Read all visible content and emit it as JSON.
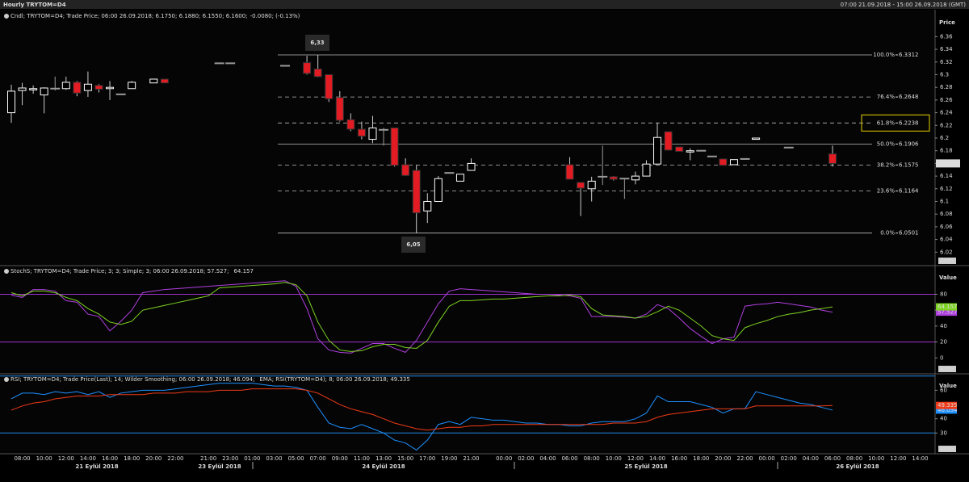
{
  "header": {
    "title": "Hourly TRYTOM=D4",
    "range": "07:00 21.09.2018 - 15:00 26.09.2018 (GMT)"
  },
  "x_axis": {
    "categories": [
      null,
      "08:00",
      null,
      "10:00",
      null,
      "12:00",
      null,
      "14:00",
      null,
      "16:00",
      null,
      "18:00",
      null,
      "20:00",
      null,
      "22:00",
      null,
      null,
      "21:00",
      null,
      "23:00",
      null,
      "01:00",
      null,
      "03:00",
      null,
      "05:00",
      null,
      "07:00",
      null,
      "09:00",
      null,
      "11:00",
      null,
      "13:00",
      null,
      "15:00",
      null,
      "17:00",
      null,
      "19:00",
      null,
      "21:00",
      null,
      null,
      "00:00",
      null,
      "02:00",
      null,
      "04:00",
      null,
      "06:00",
      null,
      "08:00",
      null,
      "10:00",
      null,
      "12:00",
      null,
      "14:00",
      null,
      "16:00",
      null,
      "18:00",
      null,
      "20:00",
      null,
      "22:00",
      null,
      "00:00",
      null,
      "02:00",
      null,
      "04:00",
      null,
      "06:00",
      null,
      "08:00",
      null,
      "10:00",
      null,
      "12:00",
      null,
      "14:00"
    ],
    "dates": [
      "21 Eylül 2018",
      "23 Eylül 2018",
      "24 Eylül 2018",
      "25 Eylül 2018",
      "26 Eylül 2018"
    ]
  },
  "chart_data": [
    {
      "type": "candlestick",
      "legend": "Cndl; TRYTOM=D4; Trade Price; 06:00 26.09.2018; 6.1750; 6.1880; 6.1550; 6.1600;",
      "legend_change": "-0.0080; (-0.13%)",
      "axis_title": "Price",
      "button": "Auto",
      "ylim": [
        6.0,
        6.4
      ],
      "yticks": [
        6.02,
        6.04,
        6.06,
        6.08,
        6.1,
        6.12,
        6.14,
        6.16,
        6.18,
        6.2,
        6.22,
        6.24,
        6.26,
        6.28,
        6.3,
        6.32,
        6.34,
        6.36
      ],
      "up_color": "#ffffff",
      "down_color": "#e31b23",
      "flat_color": "#9a9a9a",
      "last_price": {
        "value": 6.16,
        "label": "6.1600"
      },
      "annotations": [
        "6,33",
        "6,05"
      ],
      "fib_levels": [
        {
          "label": "100.0%",
          "value": 6.3312,
          "dashed": false
        },
        {
          "label": "76.4%",
          "value": 6.2648,
          "dashed": true
        },
        {
          "label": "61.8%",
          "value": 6.2238,
          "dashed": true,
          "highlight": "#e8d200"
        },
        {
          "label": "50.0%",
          "value": 6.1906,
          "dashed": false
        },
        {
          "label": "38.2%",
          "value": 6.1575,
          "dashed": true
        },
        {
          "label": "23.6%",
          "value": 6.1164,
          "dashed": true
        },
        {
          "label": "0.0%",
          "value": 6.0501,
          "dashed": false
        }
      ],
      "open": [
        6.24,
        6.275,
        6.276,
        6.268,
        6.278,
        6.278,
        6.288,
        6.275,
        6.283,
        6.278,
        6.269,
        6.278,
        null,
        6.287,
        6.293,
        null,
        null,
        null,
        null,
        6.318,
        6.318,
        null,
        null,
        null,
        null,
        6.314,
        null,
        6.319,
        6.309,
        6.3,
        6.264,
        6.229,
        6.214,
        6.198,
        6.213,
        6.216,
        6.158,
        6.149,
        6.085,
        6.1,
        6.145,
        6.132,
        6.149,
        null,
        null,
        null,
        null,
        null,
        null,
        null,
        null,
        6.158,
        6.13,
        6.12,
        6.139,
        6.139,
        6.136,
        6.134,
        6.14,
        6.159,
        6.21,
        6.186,
        6.178,
        6.18,
        6.171,
        6.167,
        6.158,
        6.167,
        6.198,
        null,
        null,
        6.185,
        null,
        null,
        null,
        6.175,
        null,
        null,
        null,
        null,
        null,
        null,
        null,
        null
      ],
      "high": [
        6.284,
        6.287,
        6.283,
        6.28,
        6.297,
        6.297,
        6.29,
        6.305,
        6.285,
        6.29,
        6.269,
        6.29,
        null,
        6.293,
        6.293,
        null,
        null,
        null,
        null,
        6.318,
        6.318,
        null,
        null,
        null,
        null,
        6.314,
        null,
        6.33,
        6.3312,
        6.3,
        6.274,
        6.239,
        6.226,
        6.235,
        6.216,
        6.216,
        6.168,
        6.157,
        6.113,
        6.14,
        6.145,
        6.143,
        6.168,
        null,
        null,
        null,
        null,
        null,
        null,
        null,
        null,
        6.17,
        6.13,
        6.139,
        6.188,
        6.14,
        6.136,
        6.147,
        6.165,
        6.224,
        6.21,
        6.186,
        6.184,
        6.18,
        6.171,
        6.167,
        6.166,
        6.167,
        6.2,
        null,
        null,
        6.185,
        null,
        null,
        null,
        6.188,
        null,
        null,
        null,
        null,
        null,
        null,
        null,
        null
      ],
      "low": [
        6.224,
        6.252,
        6.27,
        6.239,
        6.275,
        6.276,
        6.266,
        6.265,
        6.272,
        6.26,
        6.269,
        6.278,
        null,
        6.287,
        6.287,
        null,
        null,
        null,
        null,
        6.318,
        6.318,
        null,
        null,
        null,
        null,
        6.314,
        null,
        6.3,
        6.296,
        6.257,
        6.226,
        6.211,
        6.198,
        6.192,
        6.188,
        6.155,
        6.14,
        6.0501,
        6.066,
        6.1,
        6.145,
        6.132,
        6.149,
        null,
        null,
        null,
        null,
        null,
        null,
        null,
        null,
        6.135,
        6.077,
        6.1,
        6.126,
        6.133,
        6.104,
        6.127,
        6.14,
        6.159,
        6.181,
        6.179,
        6.165,
        6.18,
        6.171,
        6.157,
        6.158,
        6.167,
        6.198,
        null,
        null,
        6.185,
        null,
        null,
        null,
        6.155,
        null,
        null,
        null,
        null,
        null,
        null,
        null,
        null
      ],
      "close": [
        6.274,
        6.279,
        6.278,
        6.279,
        6.278,
        6.288,
        6.271,
        6.285,
        6.277,
        6.28,
        6.269,
        6.288,
        null,
        6.293,
        6.287,
        null,
        null,
        null,
        null,
        6.318,
        6.318,
        null,
        null,
        null,
        null,
        6.314,
        null,
        6.302,
        6.297,
        6.262,
        6.228,
        6.214,
        6.203,
        6.216,
        6.213,
        6.157,
        6.141,
        6.082,
        6.1,
        6.136,
        6.145,
        6.143,
        6.16,
        null,
        null,
        null,
        null,
        null,
        null,
        null,
        null,
        6.135,
        6.121,
        6.132,
        6.139,
        6.135,
        6.136,
        6.14,
        6.159,
        6.201,
        6.181,
        6.179,
        6.18,
        6.18,
        6.171,
        6.157,
        6.166,
        6.167,
        6.2,
        null,
        null,
        6.185,
        null,
        null,
        null,
        6.16,
        null,
        null,
        null,
        null,
        null,
        null,
        null,
        null
      ]
    },
    {
      "type": "line",
      "axis_title": "Value",
      "button": "Auto",
      "ylim": [
        -19,
        115
      ],
      "yticks": [
        0,
        20,
        40,
        60,
        80
      ],
      "levels": [
        20,
        80
      ],
      "level_color": "#a030d0",
      "series": [
        {
          "name": "StochS; TRYTOM=D4; Trade Price;  3; 3; Simple; 3; 06:00 26.09.2018; 57.527;",
          "color": "#b040e0",
          "values": [
            79,
            76,
            86,
            86,
            84,
            72,
            70,
            55,
            52,
            34,
            46,
            60,
            82,
            84,
            86,
            87,
            88,
            89,
            90,
            91,
            92,
            93,
            94,
            95,
            96,
            97,
            90,
            62,
            24,
            10,
            7,
            6,
            12,
            18,
            18,
            12,
            7,
            22,
            45,
            68,
            84,
            87,
            86,
            85,
            84,
            83,
            82,
            81,
            80,
            80,
            79,
            78,
            75,
            52,
            52,
            52,
            51,
            50,
            55,
            67,
            62,
            50,
            37,
            27,
            18,
            24,
            26,
            65,
            67,
            68,
            70,
            68,
            66,
            64,
            60,
            57.527,
            null,
            null,
            null,
            null,
            null,
            null,
            null,
            null
          ]
        },
        {
          "color": "#7ed321",
          "values": [
            82,
            78,
            84,
            84,
            82,
            76,
            72,
            62,
            55,
            45,
            42,
            46,
            60,
            63,
            66,
            69,
            72,
            75,
            78,
            88,
            89,
            90,
            91,
            92,
            93,
            95,
            92,
            78,
            45,
            22,
            10,
            8,
            9,
            14,
            17,
            17,
            13,
            12,
            22,
            45,
            65,
            72,
            72,
            73,
            74,
            74,
            75,
            76,
            77,
            78,
            78,
            79,
            77,
            62,
            54,
            53,
            52,
            50,
            52,
            58,
            65,
            60,
            50,
            40,
            28,
            24,
            22,
            38,
            43,
            47,
            52,
            55,
            57,
            60,
            62,
            64.157,
            null,
            null,
            null,
            null,
            null,
            null,
            null,
            null
          ]
        }
      ]
    },
    {
      "type": "line",
      "axis_title": "Value",
      "button": "Auto",
      "ylim": [
        16,
        71
      ],
      "yticks": [
        30,
        40,
        60
      ],
      "levels": [
        30,
        70
      ],
      "level_color": "#1e88e5",
      "series": [
        {
          "name": "RSI; TRYTOM=D4; Trade Price(Last); 14; Wilder Smoothing; 06:00 26.09.2018; 46.094;",
          "color": "#1e90ff",
          "values": [
            54,
            58,
            58,
            57,
            59,
            58,
            59,
            57,
            59,
            55,
            58,
            59,
            60,
            60,
            60,
            61,
            62,
            63,
            64,
            65,
            65,
            65,
            65,
            64,
            63,
            63,
            62,
            60,
            48,
            37,
            34,
            33,
            36,
            33,
            30,
            25,
            23,
            18,
            25,
            36,
            38,
            36,
            41,
            40,
            39,
            39,
            38,
            37,
            37,
            36,
            36,
            35,
            35,
            37,
            38,
            38,
            38,
            40,
            44,
            56,
            52,
            52,
            52,
            50,
            48,
            44,
            47,
            47,
            59,
            57,
            55,
            53,
            51,
            50,
            48,
            46.094,
            null,
            null,
            null,
            null,
            null,
            null,
            null,
            null
          ]
        },
        {
          "name": "EMA; RSI(TRYTOM=D4); 8; 06:00 26.09.2018; 49.335",
          "color": "#f03a17",
          "values": [
            46,
            49,
            51,
            52,
            54,
            55,
            56,
            56,
            56,
            57,
            57,
            57,
            57,
            58,
            58,
            58,
            59,
            59,
            59,
            60,
            60,
            60,
            61,
            61,
            61,
            61,
            61,
            60,
            58,
            54,
            50,
            47,
            45,
            43,
            40,
            37,
            35,
            33,
            32,
            33,
            34,
            34,
            35,
            35,
            36,
            36,
            36,
            36,
            36,
            36,
            36,
            36,
            36,
            36,
            36,
            37,
            37,
            37,
            38,
            41,
            43,
            44,
            45,
            46,
            47,
            47,
            47,
            47,
            49,
            49,
            49,
            49,
            49,
            49,
            49,
            49.335,
            null,
            null,
            null,
            null,
            null,
            null,
            null,
            null
          ]
        }
      ]
    }
  ]
}
